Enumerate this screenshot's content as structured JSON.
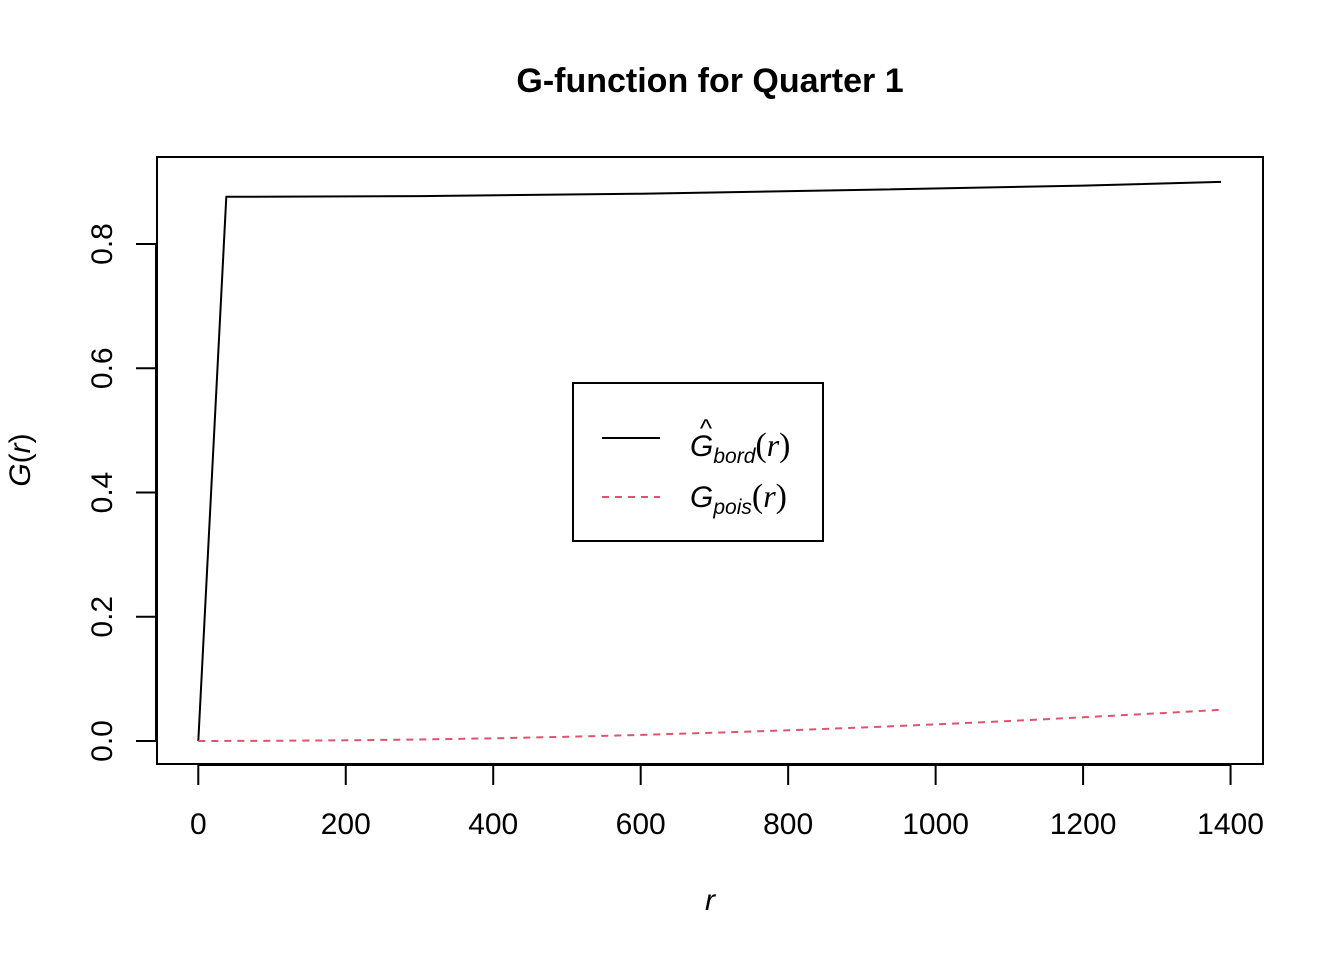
{
  "chart_data": {
    "type": "line",
    "title": "G-function for Quarter 1",
    "xlabel": "r",
    "ylabel_main": "G",
    "ylabel_arg": "r",
    "xlim": [
      -56,
      1444
    ],
    "ylim": [
      -0.037,
      0.94
    ],
    "x_ticks": [
      0,
      200,
      400,
      600,
      800,
      1000,
      1200,
      1400
    ],
    "x_tick_labels": [
      "0",
      "200",
      "400",
      "600",
      "800",
      "1000",
      "1200",
      "1400"
    ],
    "y_ticks": [
      0.0,
      0.2,
      0.4,
      0.6,
      0.8
    ],
    "y_tick_labels": [
      "0.0",
      "0.2",
      "0.4",
      "0.6",
      "0.8"
    ],
    "grid": false,
    "legend_position": "center",
    "series": [
      {
        "key": "bord",
        "legend_main": "G",
        "legend_hat": "^",
        "legend_sub": "bord",
        "legend_arg": "r",
        "color": "#000000",
        "dash": "solid",
        "x": [
          0,
          38,
          300,
          600,
          900,
          1200,
          1387
        ],
        "y": [
          0.0,
          0.876,
          0.877,
          0.881,
          0.887,
          0.894,
          0.9
        ]
      },
      {
        "key": "pois",
        "legend_main": "G",
        "legend_sub": "pois",
        "legend_arg": "r",
        "color": "#DF536B",
        "dash": "dashed",
        "x": [
          0,
          100,
          200,
          300,
          400,
          500,
          600,
          700,
          800,
          900,
          1000,
          1100,
          1200,
          1300,
          1387
        ],
        "y": [
          0.0,
          0.0003,
          0.0011,
          0.0025,
          0.0044,
          0.0068,
          0.0098,
          0.0133,
          0.0173,
          0.0218,
          0.0268,
          0.0322,
          0.0381,
          0.0444,
          0.0502
        ]
      }
    ]
  }
}
